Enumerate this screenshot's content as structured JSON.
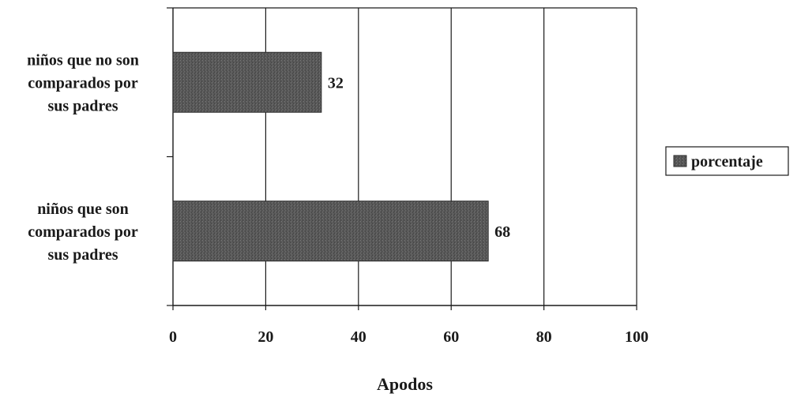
{
  "chart_data": {
    "type": "bar",
    "orientation": "horizontal",
    "categories": [
      [
        "niños que no son",
        "comparados por",
        "sus padres"
      ],
      [
        "niños que son",
        "comparados por",
        "sus padres"
      ]
    ],
    "series": [
      {
        "name": "porcentaje",
        "values": [
          32,
          68
        ]
      }
    ],
    "xlabel": "Apodos",
    "ylabel": "",
    "title": "",
    "xlim": [
      0,
      100
    ],
    "xticks": [
      "0",
      "20",
      "40",
      "60",
      "80",
      "100"
    ],
    "grid": "vertical",
    "legend_position": "right",
    "colors": {
      "bar": "#5a5a5a",
      "bar_highlight": "#6a6a6a",
      "axis": "#1a1a1a",
      "grid": "#1a1a1a",
      "text": "#1a1a1a"
    }
  }
}
